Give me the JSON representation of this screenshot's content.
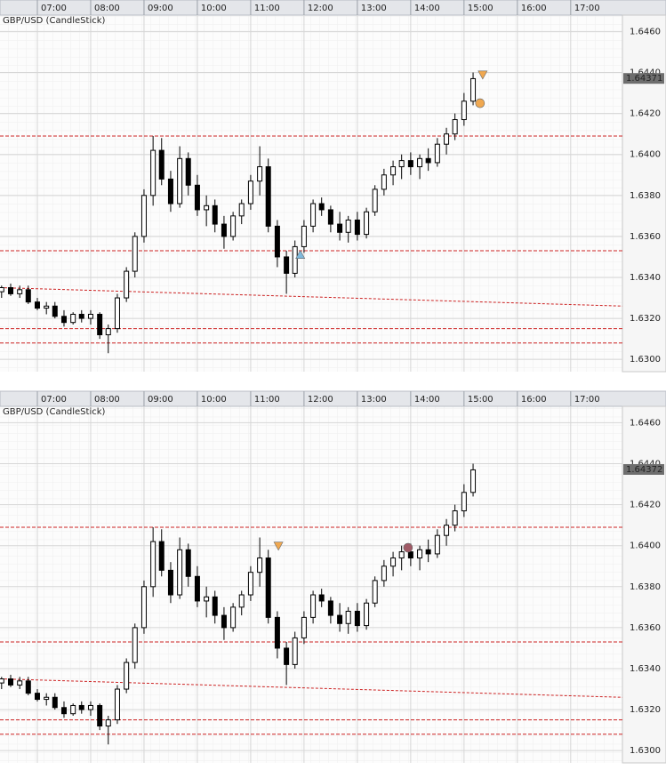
{
  "chart_data": [
    {
      "type": "candlestick",
      "title": "GBP/USD (CandleStick)",
      "xlim": [
        6.3,
        17.97
      ],
      "ylim": [
        1.6294,
        1.6468
      ],
      "xticks": [
        {
          "value": 7,
          "label": "07:00"
        },
        {
          "value": 8,
          "label": "08:00"
        },
        {
          "value": 9,
          "label": "09:00"
        },
        {
          "value": 10,
          "label": "10:00"
        },
        {
          "value": 11,
          "label": "11:00"
        },
        {
          "value": 12,
          "label": "12:00"
        },
        {
          "value": 13,
          "label": "13:00"
        },
        {
          "value": 14,
          "label": "14:00"
        },
        {
          "value": 15,
          "label": "15:00"
        },
        {
          "value": 16,
          "label": "16:00"
        },
        {
          "value": 17,
          "label": "17:00"
        }
      ],
      "yticks": [
        {
          "value": 1.63,
          "label": "1.6300"
        },
        {
          "value": 1.632,
          "label": "1.6320"
        },
        {
          "value": 1.634,
          "label": "1.6340"
        },
        {
          "value": 1.636,
          "label": "1.6360"
        },
        {
          "value": 1.638,
          "label": "1.6380"
        },
        {
          "value": 1.64,
          "label": "1.6400"
        },
        {
          "value": 1.642,
          "label": "1.6420"
        },
        {
          "value": 1.644,
          "label": "1.6440"
        },
        {
          "value": 1.646,
          "label": "1.6460"
        }
      ],
      "x": [
        6.33,
        6.5,
        6.67,
        6.83,
        7,
        7.17,
        7.33,
        7.5,
        7.67,
        7.83,
        8,
        8.17,
        8.33,
        8.5,
        8.67,
        8.83,
        9,
        9.17,
        9.33,
        9.5,
        9.67,
        9.83,
        10,
        10.17,
        10.33,
        10.5,
        10.67,
        10.83,
        11,
        11.17,
        11.33,
        11.5,
        11.67,
        11.83,
        12,
        12.17,
        12.33,
        12.5,
        12.67,
        12.83,
        13,
        13.17,
        13.33,
        13.5,
        13.67,
        13.83,
        14,
        14.17,
        14.33,
        14.5,
        14.67,
        14.83,
        15,
        15.17
      ],
      "candles": [
        [
          1.6333,
          1.6336,
          1.633,
          1.6335
        ],
        [
          1.6335,
          1.6337,
          1.6331,
          1.6332
        ],
        [
          1.6332,
          1.6336,
          1.633,
          1.6334
        ],
        [
          1.6334,
          1.6336,
          1.6327,
          1.6328
        ],
        [
          1.6328,
          1.633,
          1.6324,
          1.6325
        ],
        [
          1.6325,
          1.6328,
          1.6322,
          1.6326
        ],
        [
          1.6326,
          1.6328,
          1.632,
          1.6321
        ],
        [
          1.6321,
          1.6324,
          1.6316,
          1.6318
        ],
        [
          1.6318,
          1.6323,
          1.6317,
          1.6322
        ],
        [
          1.6322,
          1.6324,
          1.6318,
          1.632
        ],
        [
          1.632,
          1.6324,
          1.6317,
          1.6322
        ],
        [
          1.6322,
          1.6323,
          1.631,
          1.6312
        ],
        [
          1.6312,
          1.6317,
          1.6303,
          1.6315
        ],
        [
          1.6315,
          1.6332,
          1.6313,
          1.633
        ],
        [
          1.633,
          1.6345,
          1.6328,
          1.6343
        ],
        [
          1.6343,
          1.6362,
          1.634,
          1.636
        ],
        [
          1.636,
          1.6383,
          1.6357,
          1.638
        ],
        [
          1.638,
          1.6409,
          1.6375,
          1.6402
        ],
        [
          1.6402,
          1.6408,
          1.6385,
          1.6388
        ],
        [
          1.6388,
          1.6392,
          1.6372,
          1.6376
        ],
        [
          1.6376,
          1.6404,
          1.6374,
          1.6398
        ],
        [
          1.6398,
          1.6401,
          1.638,
          1.6385
        ],
        [
          1.6385,
          1.639,
          1.637,
          1.6373
        ],
        [
          1.6373,
          1.638,
          1.6365,
          1.6375
        ],
        [
          1.6375,
          1.6378,
          1.6362,
          1.6366
        ],
        [
          1.6366,
          1.637,
          1.6354,
          1.636
        ],
        [
          1.636,
          1.6372,
          1.6358,
          1.637
        ],
        [
          1.637,
          1.6378,
          1.6366,
          1.6376
        ],
        [
          1.6376,
          1.639,
          1.6373,
          1.6387
        ],
        [
          1.6387,
          1.6404,
          1.638,
          1.6394
        ],
        [
          1.6394,
          1.6398,
          1.6362,
          1.6365
        ],
        [
          1.6365,
          1.6368,
          1.6345,
          1.635
        ],
        [
          1.635,
          1.6353,
          1.6332,
          1.6342
        ],
        [
          1.6342,
          1.6358,
          1.634,
          1.6355
        ],
        [
          1.6355,
          1.6368,
          1.6352,
          1.6365
        ],
        [
          1.6365,
          1.6378,
          1.6362,
          1.6376
        ],
        [
          1.6376,
          1.6379,
          1.637,
          1.6373
        ],
        [
          1.6373,
          1.6375,
          1.6362,
          1.6366
        ],
        [
          1.6366,
          1.6372,
          1.6358,
          1.6362
        ],
        [
          1.6362,
          1.637,
          1.6357,
          1.6368
        ],
        [
          1.6368,
          1.6372,
          1.6358,
          1.6361
        ],
        [
          1.6361,
          1.6374,
          1.6359,
          1.6372
        ],
        [
          1.6372,
          1.6385,
          1.637,
          1.6383
        ],
        [
          1.6383,
          1.6393,
          1.638,
          1.639
        ],
        [
          1.639,
          1.6397,
          1.6385,
          1.6394
        ],
        [
          1.6394,
          1.64,
          1.6388,
          1.6397
        ],
        [
          1.6397,
          1.6401,
          1.639,
          1.6394
        ],
        [
          1.6394,
          1.64,
          1.6388,
          1.6398
        ],
        [
          1.6398,
          1.6403,
          1.6392,
          1.6396
        ],
        [
          1.6396,
          1.6408,
          1.6394,
          1.6405
        ],
        [
          1.6405,
          1.6413,
          1.64,
          1.641
        ],
        [
          1.641,
          1.642,
          1.6407,
          1.6417
        ],
        [
          1.6417,
          1.643,
          1.6414,
          1.6426
        ],
        [
          1.6426,
          1.644,
          1.6424,
          1.6437
        ]
      ],
      "levels": [
        1.6409,
        1.6353,
        1.6315,
        1.6308
      ],
      "level_color": "#cc2222",
      "trendline": {
        "x": [
          6.3,
          17.97
        ],
        "values": [
          1.6335,
          1.6326
        ]
      },
      "markers": [
        {
          "shape": "triangle-up",
          "color": "#7fb9dc",
          "x": 11.93,
          "value": 1.6351
        },
        {
          "shape": "triangle-down",
          "color": "#f0a850",
          "x": 15.35,
          "value": 1.6439
        },
        {
          "shape": "circle",
          "color": "#f0a850",
          "x": 15.3,
          "value": 1.6425
        }
      ],
      "last_price": 1.64371,
      "grid": true
    },
    {
      "type": "candlestick",
      "title": "GBP/USD (CandleStick)",
      "xlim": [
        6.3,
        17.97
      ],
      "ylim": [
        1.6294,
        1.6468
      ],
      "xticks": [
        {
          "value": 7,
          "label": "07:00"
        },
        {
          "value": 8,
          "label": "08:00"
        },
        {
          "value": 9,
          "label": "09:00"
        },
        {
          "value": 10,
          "label": "10:00"
        },
        {
          "value": 11,
          "label": "11:00"
        },
        {
          "value": 12,
          "label": "12:00"
        },
        {
          "value": 13,
          "label": "13:00"
        },
        {
          "value": 14,
          "label": "14:00"
        },
        {
          "value": 15,
          "label": "15:00"
        },
        {
          "value": 16,
          "label": "16:00"
        },
        {
          "value": 17,
          "label": "17:00"
        }
      ],
      "yticks": [
        {
          "value": 1.63,
          "label": "1.6300"
        },
        {
          "value": 1.632,
          "label": "1.6320"
        },
        {
          "value": 1.634,
          "label": "1.6340"
        },
        {
          "value": 1.636,
          "label": "1.6360"
        },
        {
          "value": 1.638,
          "label": "1.6380"
        },
        {
          "value": 1.64,
          "label": "1.6400"
        },
        {
          "value": 1.642,
          "label": "1.6420"
        },
        {
          "value": 1.644,
          "label": "1.6440"
        },
        {
          "value": 1.646,
          "label": "1.6460"
        }
      ],
      "x": [
        6.33,
        6.5,
        6.67,
        6.83,
        7,
        7.17,
        7.33,
        7.5,
        7.67,
        7.83,
        8,
        8.17,
        8.33,
        8.5,
        8.67,
        8.83,
        9,
        9.17,
        9.33,
        9.5,
        9.67,
        9.83,
        10,
        10.17,
        10.33,
        10.5,
        10.67,
        10.83,
        11,
        11.17,
        11.33,
        11.5,
        11.67,
        11.83,
        12,
        12.17,
        12.33,
        12.5,
        12.67,
        12.83,
        13,
        13.17,
        13.33,
        13.5,
        13.67,
        13.83,
        14,
        14.17,
        14.33,
        14.5,
        14.67,
        14.83,
        15,
        15.17
      ],
      "candles": [
        [
          1.6333,
          1.6336,
          1.633,
          1.6335
        ],
        [
          1.6335,
          1.6337,
          1.6331,
          1.6332
        ],
        [
          1.6332,
          1.6336,
          1.633,
          1.6334
        ],
        [
          1.6334,
          1.6336,
          1.6327,
          1.6328
        ],
        [
          1.6328,
          1.633,
          1.6324,
          1.6325
        ],
        [
          1.6325,
          1.6328,
          1.6322,
          1.6326
        ],
        [
          1.6326,
          1.6328,
          1.632,
          1.6321
        ],
        [
          1.6321,
          1.6324,
          1.6316,
          1.6318
        ],
        [
          1.6318,
          1.6323,
          1.6317,
          1.6322
        ],
        [
          1.6322,
          1.6324,
          1.6318,
          1.632
        ],
        [
          1.632,
          1.6324,
          1.6317,
          1.6322
        ],
        [
          1.6322,
          1.6323,
          1.631,
          1.6312
        ],
        [
          1.6312,
          1.6317,
          1.6303,
          1.6315
        ],
        [
          1.6315,
          1.6332,
          1.6313,
          1.633
        ],
        [
          1.633,
          1.6345,
          1.6328,
          1.6343
        ],
        [
          1.6343,
          1.6362,
          1.634,
          1.636
        ],
        [
          1.636,
          1.6383,
          1.6357,
          1.638
        ],
        [
          1.638,
          1.6409,
          1.6375,
          1.6402
        ],
        [
          1.6402,
          1.6408,
          1.6385,
          1.6388
        ],
        [
          1.6388,
          1.6392,
          1.6372,
          1.6376
        ],
        [
          1.6376,
          1.6404,
          1.6374,
          1.6398
        ],
        [
          1.6398,
          1.6401,
          1.638,
          1.6385
        ],
        [
          1.6385,
          1.639,
          1.637,
          1.6373
        ],
        [
          1.6373,
          1.638,
          1.6365,
          1.6375
        ],
        [
          1.6375,
          1.6378,
          1.6362,
          1.6366
        ],
        [
          1.6366,
          1.637,
          1.6354,
          1.636
        ],
        [
          1.636,
          1.6372,
          1.6358,
          1.637
        ],
        [
          1.637,
          1.6378,
          1.6366,
          1.6376
        ],
        [
          1.6376,
          1.639,
          1.6373,
          1.6387
        ],
        [
          1.6387,
          1.6404,
          1.638,
          1.6394
        ],
        [
          1.6394,
          1.6398,
          1.6362,
          1.6365
        ],
        [
          1.6365,
          1.6368,
          1.6345,
          1.635
        ],
        [
          1.635,
          1.6353,
          1.6332,
          1.6342
        ],
        [
          1.6342,
          1.6358,
          1.634,
          1.6355
        ],
        [
          1.6355,
          1.6368,
          1.6352,
          1.6365
        ],
        [
          1.6365,
          1.6378,
          1.6362,
          1.6376
        ],
        [
          1.6376,
          1.6379,
          1.637,
          1.6373
        ],
        [
          1.6373,
          1.6375,
          1.6362,
          1.6366
        ],
        [
          1.6366,
          1.6372,
          1.6358,
          1.6362
        ],
        [
          1.6362,
          1.637,
          1.6357,
          1.6368
        ],
        [
          1.6368,
          1.6372,
          1.6358,
          1.6361
        ],
        [
          1.6361,
          1.6374,
          1.6359,
          1.6372
        ],
        [
          1.6372,
          1.6385,
          1.637,
          1.6383
        ],
        [
          1.6383,
          1.6393,
          1.638,
          1.639
        ],
        [
          1.639,
          1.6397,
          1.6385,
          1.6394
        ],
        [
          1.6394,
          1.64,
          1.6388,
          1.6397
        ],
        [
          1.6397,
          1.6401,
          1.639,
          1.6394
        ],
        [
          1.6394,
          1.64,
          1.6388,
          1.6398
        ],
        [
          1.6398,
          1.6403,
          1.6392,
          1.6396
        ],
        [
          1.6396,
          1.6408,
          1.6394,
          1.6405
        ],
        [
          1.6405,
          1.6413,
          1.64,
          1.641
        ],
        [
          1.641,
          1.642,
          1.6407,
          1.6417
        ],
        [
          1.6417,
          1.643,
          1.6414,
          1.6426
        ],
        [
          1.6426,
          1.644,
          1.6424,
          1.6437
        ]
      ],
      "levels": [
        1.6409,
        1.6353,
        1.6315,
        1.6308
      ],
      "level_color": "#cc2222",
      "trendline": {
        "x": [
          6.3,
          17.97
        ],
        "values": [
          1.6335,
          1.6326
        ]
      },
      "markers": [
        {
          "shape": "triangle-down",
          "color": "#f0a850",
          "x": 11.52,
          "value": 1.64
        },
        {
          "shape": "circle",
          "color": "#a05a66",
          "x": 13.95,
          "value": 1.6399
        }
      ],
      "last_price": 1.64372,
      "grid": true
    }
  ]
}
